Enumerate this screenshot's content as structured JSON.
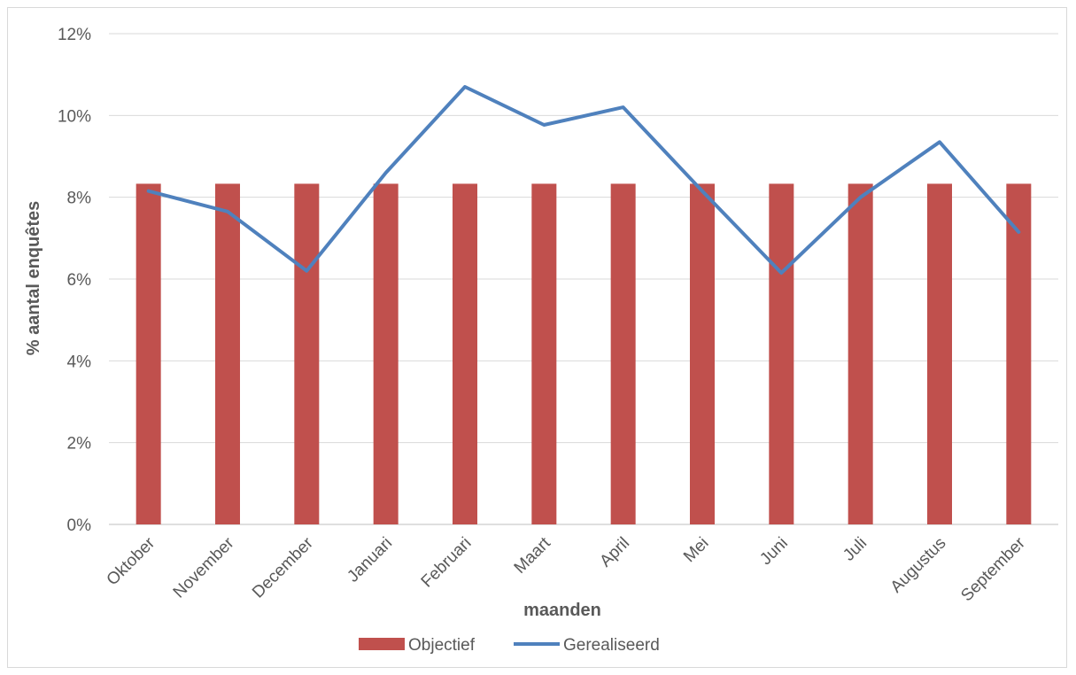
{
  "chart_data": {
    "type": "bar",
    "categories": [
      "Oktober",
      "November",
      "December",
      "Januari",
      "Februari",
      "Maart",
      "April",
      "Mei",
      "Juni",
      "Juli",
      "Augustus",
      "September"
    ],
    "series": [
      {
        "name": "Objectief",
        "type": "bar",
        "color": "#c0504d",
        "values": [
          8.33,
          8.33,
          8.33,
          8.33,
          8.33,
          8.33,
          8.33,
          8.33,
          8.33,
          8.33,
          8.33,
          8.33
        ]
      },
      {
        "name": "Gerealiseerd",
        "type": "line",
        "color": "#4f81bd",
        "values": [
          8.15,
          7.65,
          6.2,
          8.6,
          10.7,
          9.77,
          10.2,
          8.15,
          6.15,
          8.0,
          9.35,
          7.15
        ]
      }
    ],
    "xlabel": "maanden",
    "ylabel": "% aantal enquêtes",
    "ylim": [
      0,
      12
    ],
    "yticks": [
      0,
      2,
      4,
      6,
      8,
      10,
      12
    ],
    "ytick_format": "{v}%",
    "grid": true,
    "legend": "bottom"
  }
}
